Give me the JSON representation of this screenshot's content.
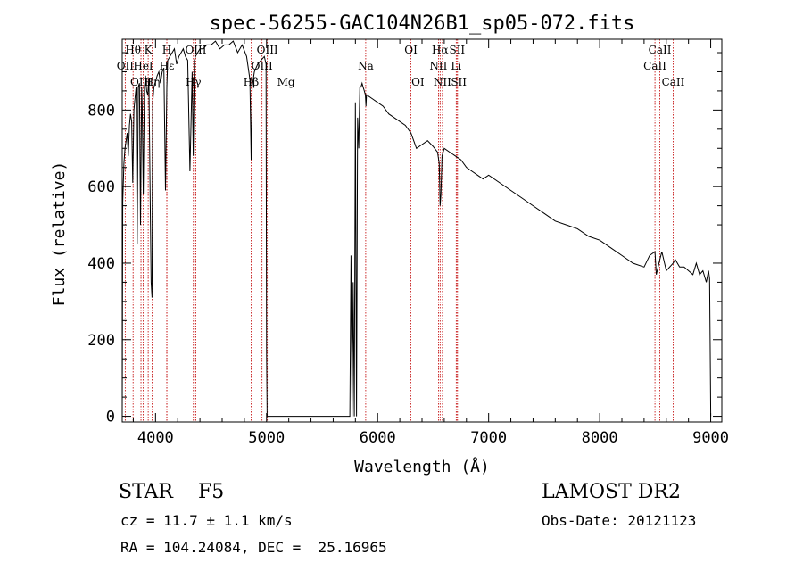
{
  "chart_data": {
    "type": "line",
    "title": "spec-56255-GAC104N26B1_sp05-072.fits",
    "xlabel": "Wavelength (Å)",
    "ylabel": "Flux (relative)",
    "xlim": [
      3700,
      9100
    ],
    "ylim": [
      -15,
      985
    ],
    "xticks": [
      4000,
      5000,
      6000,
      7000,
      8000,
      9000
    ],
    "yticks": [
      0,
      200,
      400,
      600,
      800
    ],
    "grid": false,
    "series": [
      {
        "x": [
          3700,
          3705,
          3715,
          3725,
          3735,
          3745,
          3755,
          3765,
          3775,
          3785,
          3795,
          3805,
          3815,
          3825,
          3835,
          3845,
          3855,
          3865,
          3875,
          3880,
          3890,
          3900,
          3910,
          3920,
          3930,
          3940,
          3950,
          3960,
          3968,
          3975,
          3985,
          3995,
          4005,
          4015,
          4030,
          4045,
          4060,
          4075,
          4090,
          4102,
          4110,
          4130,
          4150,
          4170,
          4190,
          4210,
          4230,
          4250,
          4270,
          4290,
          4310,
          4330,
          4340,
          4350,
          4360,
          4380,
          4400,
          4430,
          4460,
          4500,
          4540,
          4580,
          4620,
          4660,
          4700,
          4740,
          4780,
          4820,
          4850,
          4861,
          4870,
          4890,
          4920,
          4950,
          4980,
          4995,
          5000,
          5005,
          5010,
          5750,
          5760,
          5770,
          5780,
          5790,
          5800,
          5810,
          5820,
          5830,
          5840,
          5850,
          5860,
          5870,
          5880,
          5890,
          5895,
          5900,
          5950,
          6000,
          6050,
          6100,
          6150,
          6200,
          6250,
          6300,
          6350,
          6400,
          6450,
          6500,
          6540,
          6555,
          6563,
          6570,
          6580,
          6600,
          6650,
          6700,
          6750,
          6800,
          6850,
          6900,
          6950,
          7000,
          7100,
          7200,
          7300,
          7400,
          7500,
          7600,
          7700,
          7800,
          7900,
          8000,
          8100,
          8200,
          8300,
          8400,
          8450,
          8498,
          8510,
          8542,
          8560,
          8600,
          8662,
          8680,
          8720,
          8760,
          8800,
          8840,
          8870,
          8900,
          8930,
          8960,
          8980,
          8990,
          8995,
          9000
        ],
        "y": [
          0,
          560,
          660,
          700,
          720,
          740,
          680,
          760,
          790,
          770,
          610,
          800,
          830,
          860,
          450,
          860,
          870,
          500,
          860,
          810,
          580,
          860,
          890,
          850,
          840,
          880,
          620,
          350,
          310,
          820,
          860,
          870,
          880,
          890,
          900,
          870,
          900,
          910,
          590,
          860,
          930,
          940,
          950,
          960,
          920,
          940,
          950,
          960,
          940,
          930,
          640,
          900,
          680,
          930,
          940,
          950,
          960,
          960,
          970,
          970,
          980,
          960,
          970,
          970,
          980,
          950,
          970,
          940,
          880,
          670,
          860,
          900,
          920,
          930,
          940,
          920,
          160,
          0,
          0,
          0,
          420,
          0,
          350,
          0,
          820,
          0,
          780,
          700,
          860,
          860,
          870,
          860,
          850,
          840,
          810,
          840,
          830,
          820,
          810,
          790,
          780,
          770,
          760,
          740,
          700,
          710,
          720,
          705,
          690,
          660,
          550,
          580,
          680,
          700,
          690,
          680,
          670,
          650,
          640,
          630,
          620,
          630,
          610,
          590,
          570,
          550,
          530,
          510,
          500,
          490,
          470,
          460,
          440,
          420,
          400,
          390,
          420,
          430,
          370,
          410,
          430,
          380,
          400,
          410,
          390,
          390,
          380,
          370,
          400,
          370,
          380,
          350,
          380,
          360,
          200,
          0
        ]
      }
    ],
    "lines": [
      {
        "name": "OII",
        "w": 3727,
        "row": 1
      },
      {
        "name": "Hθ",
        "w": 3798,
        "row": 0
      },
      {
        "name": "OIII",
        "w": 3869,
        "row": 2
      },
      {
        "name": "HeI",
        "w": 3889,
        "row": 1
      },
      {
        "name": "K",
        "w": 3934,
        "row": 0
      },
      {
        "name": "Hη",
        "w": 3970,
        "row": 2
      },
      {
        "name": "Hε",
        "w": 4102,
        "row": 1
      },
      {
        "name": "H",
        "w": 4102,
        "row": 0
      },
      {
        "name": "Hγ",
        "w": 4341,
        "row": 2
      },
      {
        "name": "OIII",
        "w": 4363,
        "row": 0
      },
      {
        "name": "Hβ",
        "w": 4861,
        "row": 2
      },
      {
        "name": "OIII",
        "w": 4959,
        "row": 1
      },
      {
        "name": "OIII",
        "w": 5007,
        "row": 0
      },
      {
        "name": "Mg",
        "w": 5175,
        "row": 2
      },
      {
        "name": "Na",
        "w": 5893,
        "row": 1
      },
      {
        "name": "OI",
        "w": 6300,
        "row": 0
      },
      {
        "name": "OI",
        "w": 6363,
        "row": 2
      },
      {
        "name": "NII",
        "w": 6548,
        "row": 1
      },
      {
        "name": "Hα",
        "w": 6563,
        "row": 0
      },
      {
        "name": "NII",
        "w": 6584,
        "row": 2
      },
      {
        "name": "Li",
        "w": 6708,
        "row": 1
      },
      {
        "name": "SII",
        "w": 6716,
        "row": 0
      },
      {
        "name": "SII",
        "w": 6731,
        "row": 2
      },
      {
        "name": "CaII",
        "w": 8498,
        "row": 1
      },
      {
        "name": "CaII",
        "w": 8542,
        "row": 0
      },
      {
        "name": "CaII",
        "w": 8662,
        "row": 2
      }
    ]
  },
  "info": {
    "class": "STAR    F5",
    "survey": "LAMOST DR2",
    "cz": "cz = 11.7 ± 1.1 km/s",
    "obs_date": "Obs-Date: 20121123",
    "radec": "RA = 104.24084, DEC =  25.16965"
  },
  "colors": {
    "line_marker": "#c00000",
    "spectrum": "#000000",
    "axes": "#000000"
  }
}
